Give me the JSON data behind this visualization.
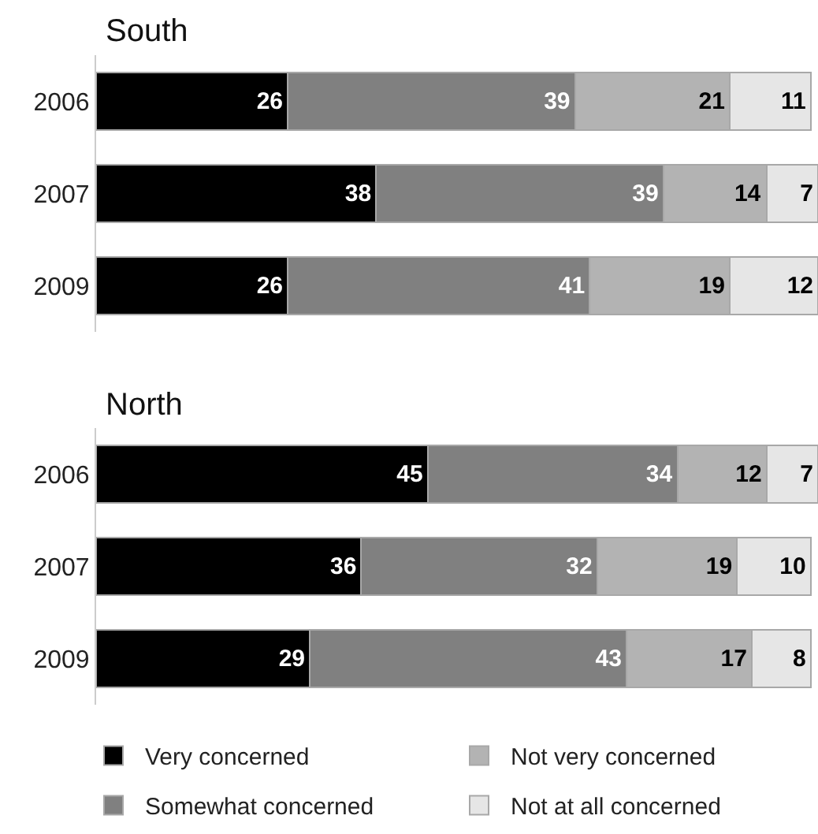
{
  "chart_data": [
    {
      "type": "bar",
      "orientation": "horizontal",
      "stacked": true,
      "title": "South",
      "categories": [
        "2006",
        "2007",
        "2009"
      ],
      "xlim": [
        0,
        98
      ],
      "tick_labels": "y",
      "data_labels": true,
      "series": [
        {
          "color": "#000000",
          "values": [
            26,
            38,
            26
          ]
        },
        {
          "color": "#808080",
          "values": [
            39,
            39,
            41
          ]
        },
        {
          "color": "#b3b3b3",
          "values": [
            21,
            14,
            19
          ]
        },
        {
          "color": "#e6e6e6",
          "values": [
            11,
            7,
            12
          ]
        }
      ]
    },
    {
      "type": "bar",
      "orientation": "horizontal",
      "stacked": true,
      "title": "North",
      "categories": [
        "2006",
        "2007",
        "2009"
      ],
      "xlim": [
        0,
        98
      ],
      "tick_labels": "y",
      "data_labels": true,
      "legend": "bottom",
      "series": [
        {
          "name": "Very concerned",
          "color": "#000000",
          "values": [
            45,
            36,
            29
          ]
        },
        {
          "name": "Somewhat concerned",
          "color": "#808080",
          "values": [
            34,
            32,
            43
          ]
        },
        {
          "name": "Not very concerned",
          "color": "#b3b3b3",
          "values": [
            12,
            19,
            17
          ]
        },
        {
          "name": "Not at all concerned",
          "color": "#e6e6e6",
          "values": [
            7,
            10,
            8
          ]
        }
      ]
    }
  ]
}
